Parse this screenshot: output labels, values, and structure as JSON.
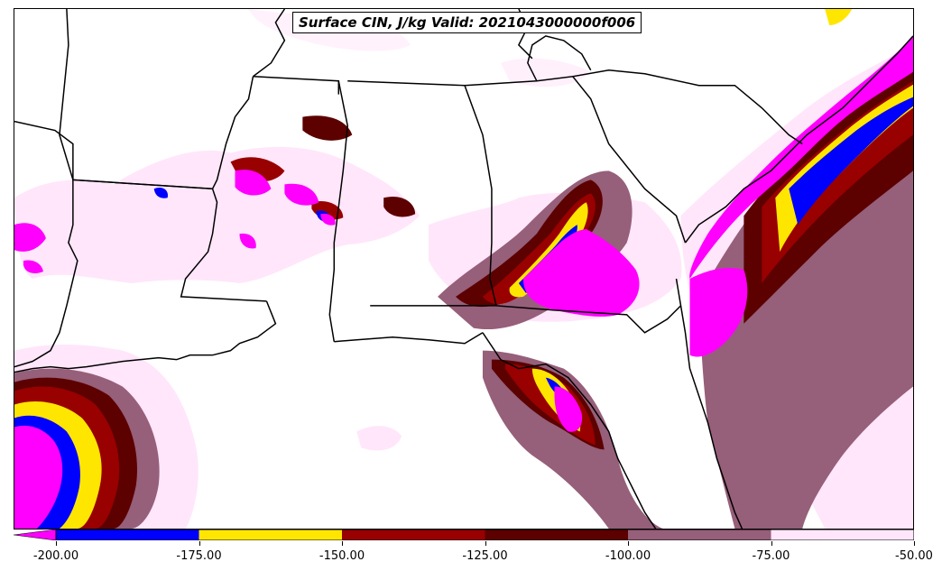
{
  "title": "Surface CIN, J/kg Valid: 2021043000000f006",
  "colorbar": {
    "ticks": [
      "-200.00",
      "-175.00",
      "-150.00",
      "-125.00",
      "-100.00",
      "-75.00",
      "-50.00"
    ],
    "colors": [
      "#ff00ff",
      "#0000ff",
      "#ffe600",
      "#990000",
      "#5c0000",
      "#965f7a",
      "#ffe6fa"
    ]
  },
  "map_colors": {
    "land": "#ffffff",
    "boundary": "#000000"
  }
}
